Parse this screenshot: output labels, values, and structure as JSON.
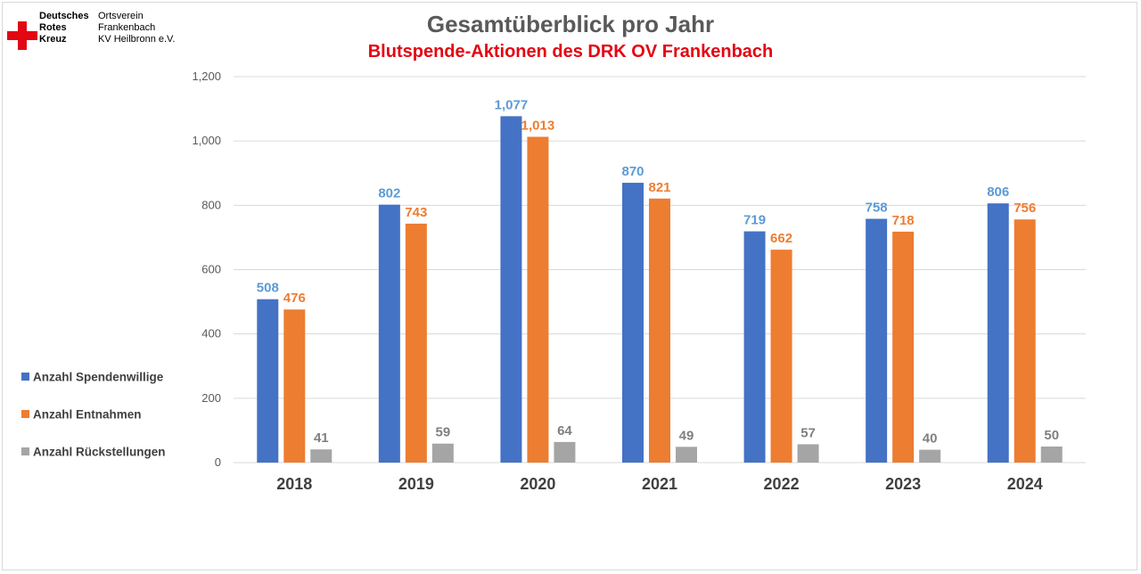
{
  "logo": {
    "org_lines": [
      "Deutsches",
      "Rotes",
      "Kreuz"
    ],
    "branch_lines": [
      "Ortsverein",
      "Frankenbach",
      "KV Heilbronn e.V."
    ]
  },
  "colors": {
    "spendenwillige": "#4472c4",
    "entnahmen": "#ed7d31",
    "rueckstellungen": "#a5a5a5",
    "subtitle": "#e30613",
    "grid": "#d9d9d9"
  },
  "chart_data": {
    "type": "bar",
    "title": "Gesamtüberblick pro Jahr",
    "subtitle": "Blutspende-Aktionen des DRK OV Frankenbach",
    "categories": [
      "2018",
      "2019",
      "2020",
      "2021",
      "2022",
      "2023",
      "2024"
    ],
    "series": [
      {
        "name": "Anzahl Spendenwillige",
        "values": [
          508,
          802,
          1077,
          870,
          719,
          758,
          806
        ],
        "labels": [
          "508",
          "802",
          "1,077",
          "870",
          "719",
          "758",
          "806"
        ]
      },
      {
        "name": "Anzahl Entnahmen",
        "values": [
          476,
          743,
          1013,
          821,
          662,
          718,
          756
        ],
        "labels": [
          "476",
          "743",
          "1,013",
          "821",
          "662",
          "718",
          "756"
        ]
      },
      {
        "name": "Anzahl Rückstellungen",
        "values": [
          41,
          59,
          64,
          49,
          57,
          40,
          50
        ],
        "labels": [
          "41",
          "59",
          "64",
          "49",
          "57",
          "40",
          "50"
        ]
      }
    ],
    "ylim": [
      0,
      1200
    ],
    "yticks": [
      "0",
      "200",
      "400",
      "600",
      "800",
      "1,000",
      "1,200"
    ],
    "grid": true,
    "legend_position": "left"
  }
}
